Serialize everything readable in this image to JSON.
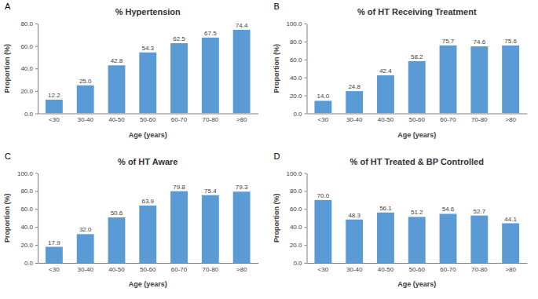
{
  "chart_data": [
    {
      "type": "bar",
      "annotations": [
        "A"
      ],
      "title": "% Hypertension",
      "x_label": "Age (years)",
      "y_label": "Proportion (%)",
      "categories": [
        "<30",
        "30-40",
        "40-50",
        "50-60",
        "60-70",
        "70-80",
        ">80"
      ],
      "values": [
        12.2,
        25.0,
        42.8,
        54.3,
        62.5,
        67.5,
        74.4
      ],
      "value_labels": [
        "12.2",
        "25.0",
        "42.8",
        "54.3",
        "62.5",
        "67.5",
        "74.4"
      ],
      "color": "#5b9bd5",
      "data_labels": true,
      "grid": false,
      "ylim": [
        0,
        80
      ],
      "yticks": [
        {
          "value": 0,
          "label": "0.0"
        },
        {
          "value": 20,
          "label": "20.0"
        },
        {
          "value": 40,
          "label": "40.0"
        },
        {
          "value": 60,
          "label": "60.0"
        },
        {
          "value": 80,
          "label": "80.0"
        }
      ]
    },
    {
      "type": "bar",
      "annotations": [
        "B"
      ],
      "title": "% of HT Receiving Treatment",
      "x_label": "Age (years)",
      "y_label": "Proportion (%)",
      "categories": [
        "<30",
        "30-40",
        "40-50",
        "50-60",
        "60-70",
        "70-80",
        ">80"
      ],
      "values": [
        14.0,
        24.8,
        42.4,
        58.2,
        75.7,
        74.6,
        75.6
      ],
      "value_labels": [
        "14.0",
        "24.8",
        "42.4",
        "58.2",
        "75.7",
        "74.6",
        "75.6"
      ],
      "color": "#5b9bd5",
      "data_labels": true,
      "grid": false,
      "ylim": [
        0,
        100
      ],
      "yticks": [
        {
          "value": 0,
          "label": "0.0"
        },
        {
          "value": 20,
          "label": "20.0"
        },
        {
          "value": 40,
          "label": "40.0"
        },
        {
          "value": 60,
          "label": "60.0"
        },
        {
          "value": 80,
          "label": "80.0"
        },
        {
          "value": 100,
          "label": "100.0"
        }
      ]
    },
    {
      "type": "bar",
      "annotations": [
        "C"
      ],
      "title": "% of HT Aware",
      "x_label": "Age (years)",
      "y_label": "Proportion (%)",
      "categories": [
        "<30",
        "30-40",
        "40-50",
        "50-60",
        "60-70",
        "70-80",
        ">80"
      ],
      "values": [
        17.9,
        32.0,
        50.6,
        63.9,
        79.8,
        75.4,
        79.3
      ],
      "value_labels": [
        "17.9",
        "32.0",
        "50.6",
        "63.9",
        "79.8",
        "75.4",
        "79.3"
      ],
      "color": "#5b9bd5",
      "data_labels": true,
      "grid": false,
      "ylim": [
        0,
        100
      ],
      "yticks": [
        {
          "value": 0,
          "label": "0.0"
        },
        {
          "value": 20,
          "label": "20.0"
        },
        {
          "value": 40,
          "label": "40.0"
        },
        {
          "value": 60,
          "label": "60.0"
        },
        {
          "value": 80,
          "label": "80.0"
        },
        {
          "value": 100,
          "label": "100.0"
        }
      ]
    },
    {
      "type": "bar",
      "annotations": [
        "D"
      ],
      "title": "% of HT Treated & BP Controlled",
      "x_label": "Age (years)",
      "y_label": "Proportion (%)",
      "categories": [
        "<30",
        "30-40",
        "40-50",
        "50-60",
        "60-70",
        "70-80",
        ">80"
      ],
      "values": [
        70.0,
        48.3,
        56.1,
        51.2,
        54.6,
        52.7,
        44.1
      ],
      "value_labels": [
        "70.0",
        "48.3",
        "56.1",
        "51.2",
        "54.6",
        "52.7",
        "44.1"
      ],
      "color": "#5b9bd5",
      "data_labels": true,
      "grid": false,
      "ylim": [
        0,
        100
      ],
      "yticks": [
        {
          "value": 0,
          "label": "0.0"
        },
        {
          "value": 20,
          "label": "20.0"
        },
        {
          "value": 40,
          "label": "40.0"
        },
        {
          "value": 60,
          "label": "60.0"
        },
        {
          "value": 80,
          "label": "80.0"
        },
        {
          "value": 100,
          "label": "100.0"
        }
      ]
    }
  ]
}
